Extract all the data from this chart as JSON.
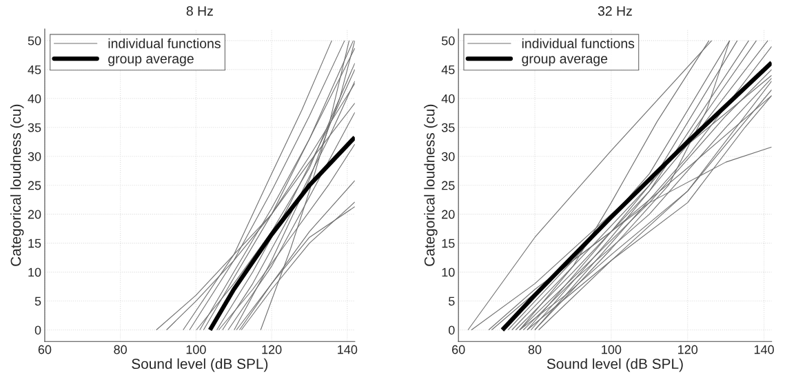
{
  "chart_data": [
    {
      "type": "line",
      "title": "8 Hz",
      "xlabel": "Sound level (dB SPL)",
      "ylabel": "Categorical loudness (cu)",
      "xlim": [
        60,
        142
      ],
      "ylim": [
        -2,
        52
      ],
      "xticks": [
        60,
        80,
        100,
        120,
        140
      ],
      "yticks": [
        0,
        5,
        10,
        15,
        20,
        25,
        30,
        35,
        40,
        45,
        50
      ],
      "grid": true,
      "legend": "top left",
      "series": [
        {
          "name": "individual functions",
          "color": "#6e6e6e",
          "x": [
            96.6,
            110,
            120,
            128,
            135.9
          ],
          "values": [
            0,
            13,
            27,
            38,
            50
          ]
        },
        {
          "color": "#6e6e6e",
          "x": [
            98.3,
            110,
            120,
            130,
            139.3
          ],
          "values": [
            0,
            12,
            24,
            37,
            50
          ]
        },
        {
          "color": "#6e6e6e",
          "x": [
            89.5,
            100,
            110,
            120,
            130,
            142
          ],
          "values": [
            0,
            6,
            13,
            20,
            29,
            39.2
          ]
        },
        {
          "color": "#6e6e6e",
          "x": [
            92.2,
            100,
            110,
            120,
            130,
            142
          ],
          "values": [
            0,
            5,
            12,
            20,
            30,
            42.6
          ]
        },
        {
          "color": "#6e6e6e",
          "x": [
            100.1,
            110,
            120,
            130,
            142
          ],
          "values": [
            0,
            8,
            17,
            28,
            46.1
          ]
        },
        {
          "color": "#6e6e6e",
          "x": [
            101,
            110,
            120,
            130,
            141.6
          ],
          "values": [
            0,
            10,
            21,
            33,
            50
          ]
        },
        {
          "color": "#6e6e6e",
          "x": [
            102,
            110,
            120,
            130,
            142
          ],
          "values": [
            0,
            9,
            20,
            33,
            48.7
          ]
        },
        {
          "color": "#6e6e6e",
          "x": [
            105.5,
            115,
            125,
            135,
            142
          ],
          "values": [
            0,
            10,
            22,
            35,
            45
          ]
        },
        {
          "color": "#6e6e6e",
          "x": [
            107,
            115,
            125,
            135,
            142
          ],
          "values": [
            0,
            8,
            20,
            33,
            43
          ]
        },
        {
          "color": "#6e6e6e",
          "x": [
            108.5,
            120,
            130,
            142
          ],
          "values": [
            0,
            11,
            23,
            37.6
          ]
        },
        {
          "color": "#6e6e6e",
          "x": [
            110.1,
            120,
            130,
            138,
            142
          ],
          "values": [
            0,
            12,
            26,
            40,
            50
          ]
        },
        {
          "color": "#6e6e6e",
          "x": [
            110.7,
            120,
            130,
            142
          ],
          "values": [
            0,
            8,
            17,
            25.8
          ]
        },
        {
          "color": "#6e6e6e",
          "x": [
            112,
            120,
            130,
            142
          ],
          "values": [
            0,
            7,
            15,
            22.1
          ]
        },
        {
          "color": "#6e6e6e",
          "x": [
            111.5,
            120,
            130,
            142
          ],
          "values": [
            0,
            8,
            16,
            21.3
          ]
        },
        {
          "color": "#6e6e6e",
          "x": [
            117.1,
            125,
            130,
            135,
            140.5
          ],
          "values": [
            0,
            14,
            24,
            35,
            50
          ]
        },
        {
          "color": "#6e6e6e",
          "x": [
            106,
            115,
            125,
            135,
            142
          ],
          "values": [
            0,
            7,
            16,
            25,
            32.1
          ]
        },
        {
          "name": "group average",
          "color": "#000000",
          "x": [
            103.7,
            110,
            120,
            130,
            142
          ],
          "values": [
            0,
            7,
            16.5,
            25,
            33.3
          ]
        }
      ]
    },
    {
      "type": "line",
      "title": "32 Hz",
      "xlabel": "Sound level (dB SPL)",
      "ylabel": "Categorical loudness (cu)",
      "xlim": [
        60,
        142
      ],
      "ylim": [
        -2,
        52
      ],
      "xticks": [
        60,
        80,
        100,
        120,
        140
      ],
      "yticks": [
        0,
        5,
        10,
        15,
        20,
        25,
        30,
        35,
        40,
        45,
        50
      ],
      "grid": true,
      "legend": "top left",
      "series": [
        {
          "name": "individual functions",
          "color": "#6e6e6e",
          "x": [
            62.5,
            80,
            100,
            126.3
          ],
          "values": [
            0,
            16,
            31,
            50
          ]
        },
        {
          "color": "#6e6e6e",
          "x": [
            76,
            90,
            100,
            112,
            125.6
          ],
          "values": [
            0,
            11,
            22,
            36,
            50
          ]
        },
        {
          "color": "#6e6e6e",
          "x": [
            63.4,
            80,
            100,
            120,
            142
          ],
          "values": [
            0,
            8,
            20,
            32,
            44
          ]
        },
        {
          "color": "#6e6e6e",
          "x": [
            67.9,
            80,
            100,
            120,
            142
          ],
          "values": [
            0,
            7,
            17,
            28,
            40.5
          ]
        },
        {
          "color": "#6e6e6e",
          "x": [
            68.7,
            90,
            110,
            130,
            142
          ],
          "values": [
            0,
            12,
            22,
            29,
            31.6
          ]
        },
        {
          "color": "#6e6e6e",
          "x": [
            73,
            90,
            110,
            131
          ],
          "values": [
            0,
            12,
            27,
            50
          ]
        },
        {
          "color": "#6e6e6e",
          "x": [
            74,
            90,
            110,
            133
          ],
          "values": [
            0,
            11,
            25,
            50
          ]
        },
        {
          "color": "#6e6e6e",
          "x": [
            75,
            90,
            110,
            136
          ],
          "values": [
            0,
            10,
            24,
            50
          ]
        },
        {
          "color": "#6e6e6e",
          "x": [
            76,
            90,
            110,
            130,
            142
          ],
          "values": [
            0,
            9,
            22,
            37,
            45
          ]
        },
        {
          "color": "#6e6e6e",
          "x": [
            77,
            90,
            110,
            130,
            142
          ],
          "values": [
            0,
            8.5,
            20,
            35,
            43.5
          ]
        },
        {
          "color": "#6e6e6e",
          "x": [
            76,
            88,
            100,
            120,
            135,
            142
          ],
          "values": [
            0,
            6,
            13,
            24,
            36,
            41.5
          ]
        },
        {
          "color": "#6e6e6e",
          "x": [
            78,
            100,
            120,
            135,
            142
          ],
          "values": [
            0,
            12,
            22,
            35,
            40.5
          ]
        },
        {
          "color": "#6e6e6e",
          "x": [
            81,
            100,
            120,
            142
          ],
          "values": [
            0,
            12,
            24,
            43
          ]
        },
        {
          "color": "#6e6e6e",
          "x": [
            80,
            100,
            120,
            142
          ],
          "values": [
            0,
            15,
            30,
            49
          ]
        },
        {
          "color": "#6e6e6e",
          "x": [
            78,
            100,
            120,
            138
          ],
          "values": [
            0,
            17,
            33,
            50
          ]
        },
        {
          "color": "#6e6e6e",
          "x": [
            79,
            100,
            120,
            141
          ],
          "values": [
            0,
            16,
            32,
            50
          ]
        },
        {
          "color": "#6e6e6e",
          "x": [
            80,
            100,
            115,
            125,
            131
          ],
          "values": [
            0,
            14,
            25,
            38,
            50
          ]
        },
        {
          "name": "group average",
          "color": "#000000",
          "x": [
            71.5,
            80,
            100,
            120,
            142
          ],
          "values": [
            0,
            6,
            19.5,
            32.5,
            46.2
          ]
        }
      ]
    }
  ]
}
